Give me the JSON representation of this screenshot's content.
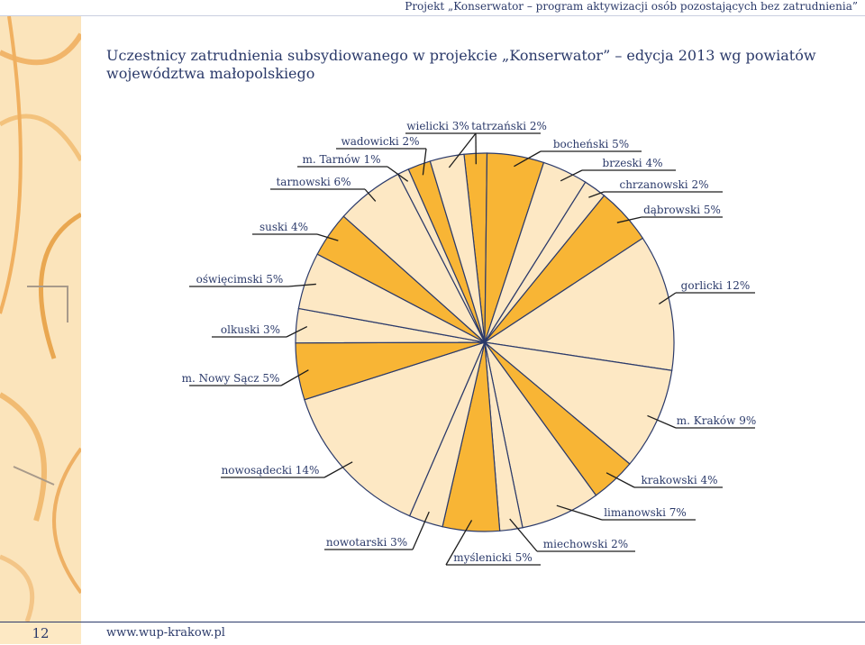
{
  "header": {
    "project": "Projekt „Konserwator – program aktywizacji osób pozostających bez zatrudnienia”"
  },
  "title": "Uczestnicy zatrudnienia subsydiowanego w projekcie „Konserwator” – edycja 2013 wg powiatów województwa małopolskiego",
  "footer": {
    "page_number": "12",
    "website": "www.wup-krakow.pl"
  },
  "colors": {
    "dark": "#f8b535",
    "light": "#fde8c4",
    "stroke": "#2b3a6a",
    "text": "#2b3a6a"
  },
  "chart_data": {
    "type": "pie",
    "title": "Uczestnicy zatrudnienia subsydiowanego w projekcie „Konserwator” – edycja 2013 wg powiatów województwa małopolskiego",
    "slices": [
      {
        "label": "tatrzański 2%",
        "value": 2,
        "shade": "dark"
      },
      {
        "label": "bocheński 5%",
        "value": 5,
        "shade": "dark"
      },
      {
        "label": "brzeski 4%",
        "value": 4,
        "shade": "light"
      },
      {
        "label": "chrzanowski 2%",
        "value": 2,
        "shade": "light"
      },
      {
        "label": "dąbrowski 5%",
        "value": 5,
        "shade": "dark"
      },
      {
        "label": "gorlicki 12%",
        "value": 12,
        "shade": "light"
      },
      {
        "label": "m. Kraków 9%",
        "value": 9,
        "shade": "light"
      },
      {
        "label": "krakowski 4%",
        "value": 4,
        "shade": "dark"
      },
      {
        "label": "limanowski 7%",
        "value": 7,
        "shade": "light"
      },
      {
        "label": "miechowski 2%",
        "value": 2,
        "shade": "light"
      },
      {
        "label": "myślenicki 5%",
        "value": 5,
        "shade": "dark"
      },
      {
        "label": "nowotarski 3%",
        "value": 3,
        "shade": "light"
      },
      {
        "label": "nowosądecki 14%",
        "value": 14,
        "shade": "light"
      },
      {
        "label": "m. Nowy Sącz 5%",
        "value": 5,
        "shade": "dark"
      },
      {
        "label": "olkuski 3%",
        "value": 3,
        "shade": "light"
      },
      {
        "label": "oświęcimski 5%",
        "value": 5,
        "shade": "light"
      },
      {
        "label": "suski 4%",
        "value": 4,
        "shade": "dark"
      },
      {
        "label": "tarnowski 6%",
        "value": 6,
        "shade": "light"
      },
      {
        "label": "m. Tarnów 1%",
        "value": 1,
        "shade": "light"
      },
      {
        "label": "wadowicki 2%",
        "value": 2,
        "shade": "dark"
      },
      {
        "label": "wielicki 3%",
        "value": 3,
        "shade": "light"
      }
    ]
  }
}
